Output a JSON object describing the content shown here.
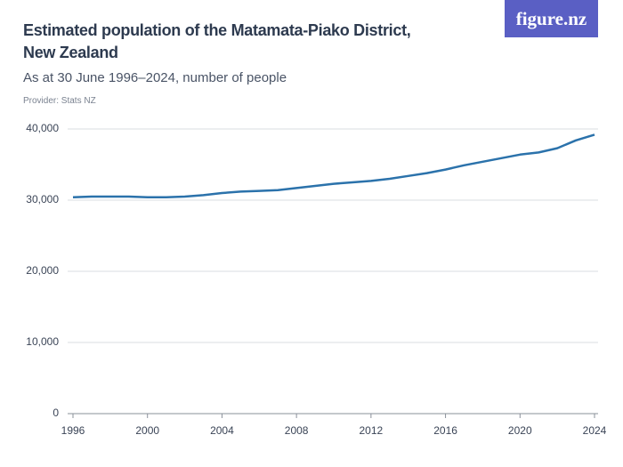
{
  "chart_data": {
    "type": "line",
    "title": "Estimated population of the Matamata-Piako District, New Zealand",
    "subtitle": "As at 30 June 1996–2024, number of people",
    "provider": "Provider: Stats NZ",
    "logo": "figure.nz",
    "x": [
      1996,
      1997,
      1998,
      1999,
      2000,
      2001,
      2002,
      2003,
      2004,
      2005,
      2006,
      2007,
      2008,
      2009,
      2010,
      2011,
      2012,
      2013,
      2014,
      2015,
      2016,
      2017,
      2018,
      2019,
      2020,
      2021,
      2022,
      2023,
      2024
    ],
    "values": [
      30400,
      30500,
      30500,
      30500,
      30400,
      30400,
      30500,
      30700,
      31000,
      31200,
      31300,
      31400,
      31700,
      32000,
      32300,
      32500,
      32700,
      33000,
      33400,
      33800,
      34300,
      34900,
      35400,
      35900,
      36400,
      36700,
      37300,
      38400,
      39200
    ],
    "color": "#2b72ab",
    "xlim": [
      1996,
      2024
    ],
    "xticks": [
      1996,
      2000,
      2004,
      2008,
      2012,
      2016,
      2020,
      2024
    ],
    "ylim": [
      0,
      40000
    ],
    "yticks": [
      0,
      {
        "value": 10000,
        "label": "10,000"
      },
      {
        "value": 20000,
        "label": "20,000"
      },
      {
        "value": 30000,
        "label": "30,000"
      },
      {
        "value": 40000,
        "label": "40,000"
      }
    ],
    "grid": true
  }
}
